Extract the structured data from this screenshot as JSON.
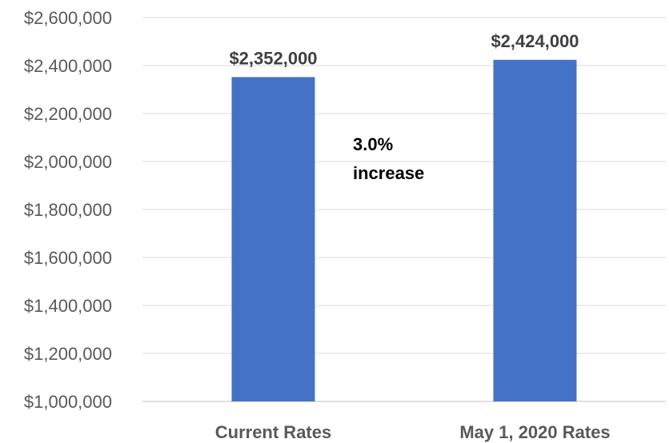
{
  "chart_data": {
    "type": "bar",
    "categories": [
      "Current Rates",
      "May 1, 2020 Rates"
    ],
    "values": [
      2352000,
      2424000
    ],
    "data_labels": [
      "$2,352,000",
      "$2,424,000"
    ],
    "ylim": [
      1000000,
      2600000
    ],
    "y_ticks": [
      1000000,
      1200000,
      1400000,
      1600000,
      1800000,
      2000000,
      2200000,
      2400000,
      2600000
    ],
    "y_tick_labels": [
      "$1,000,000",
      "$1,200,000",
      "$1,400,000",
      "$1,600,000",
      "$1,800,000",
      "$2,000,000",
      "$2,200,000",
      "$2,400,000",
      "$2,600,000"
    ],
    "grid": true,
    "legend": "none",
    "bar_color": "#4472C4",
    "annotation": {
      "lines": [
        "3.0%",
        "increase"
      ]
    }
  }
}
